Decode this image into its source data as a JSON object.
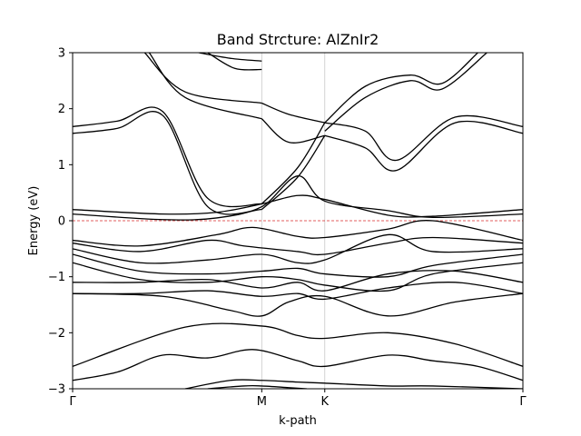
{
  "chart_data": {
    "type": "line",
    "title": "Band Strcture: AlZnIr2",
    "xlabel": "k-path",
    "ylabel": "Energy (eV)",
    "ylim": [
      -3,
      3
    ],
    "xlim": [
      0,
      1
    ],
    "x_ticks": [
      {
        "pos": 0.0,
        "label": "Γ"
      },
      {
        "pos": 0.42,
        "label": "M"
      },
      {
        "pos": 0.56,
        "label": "K"
      },
      {
        "pos": 1.0,
        "label": "Γ"
      }
    ],
    "y_ticks": [
      -3,
      -2,
      -1,
      0,
      1,
      2,
      3
    ],
    "fermi_level": 0,
    "grid": "vertical lines at high-symmetry points",
    "colors": {
      "bands": "#000000",
      "fermi": "#d62728",
      "kline": "#c8c8c8"
    },
    "series": [
      {
        "x": [
          0,
          0.1,
          0.2,
          0.3,
          0.42
        ],
        "values": [
          1.68,
          1.78,
          1.95,
          0.4,
          0.3
        ]
      },
      {
        "x": [
          0,
          0.1,
          0.2,
          0.3,
          0.42
        ],
        "values": [
          1.56,
          1.65,
          1.88,
          0.25,
          0.2
        ]
      },
      {
        "x": [
          0.42,
          0.5,
          0.56
        ],
        "values": [
          0.3,
          0.95,
          1.75
        ]
      },
      {
        "x": [
          0.42,
          0.5,
          0.56
        ],
        "values": [
          0.2,
          0.78,
          1.52
        ]
      },
      {
        "x": [
          0.56,
          0.65,
          0.72,
          0.85,
          1.0
        ],
        "values": [
          1.75,
          1.6,
          1.08,
          1.85,
          1.68
        ]
      },
      {
        "x": [
          0.56,
          0.65,
          0.72,
          0.85,
          1.0
        ],
        "values": [
          1.52,
          1.3,
          0.9,
          1.75,
          1.56
        ]
      },
      {
        "x": [
          0.16,
          0.25,
          0.42
        ],
        "values": [
          3.0,
          2.3,
          2.1
        ]
      },
      {
        "x": [
          0.17,
          0.25,
          0.42
        ],
        "values": [
          3.0,
          2.2,
          1.82
        ]
      },
      {
        "x": [
          0.28,
          0.35,
          0.42
        ],
        "values": [
          3.0,
          2.9,
          2.85
        ]
      },
      {
        "x": [
          0.3,
          0.36,
          0.42
        ],
        "values": [
          3.0,
          2.72,
          2.7
        ]
      },
      {
        "x": [
          0.42,
          0.48,
          0.56
        ],
        "values": [
          2.1,
          1.9,
          1.75
        ]
      },
      {
        "x": [
          0.42,
          0.48,
          0.56
        ],
        "values": [
          1.82,
          1.4,
          1.52
        ]
      },
      {
        "x": [
          0.56,
          0.65,
          0.75,
          0.82,
          0.9
        ],
        "values": [
          1.75,
          2.4,
          2.6,
          2.45,
          3.0
        ]
      },
      {
        "x": [
          0.56,
          0.65,
          0.75,
          0.82,
          0.92
        ],
        "values": [
          1.6,
          2.2,
          2.5,
          2.35,
          3.0
        ]
      },
      {
        "x": [
          0.0,
          0.2,
          0.32,
          0.42,
          0.5,
          0.56,
          0.7,
          0.8,
          1.0
        ],
        "values": [
          0.2,
          0.12,
          0.15,
          0.3,
          0.45,
          0.38,
          0.1,
          0.08,
          0.2
        ]
      },
      {
        "x": [
          0.0,
          0.2,
          0.32,
          0.42,
          0.5,
          0.56,
          0.7,
          0.8,
          1.0
        ],
        "values": [
          0.12,
          0.02,
          0.05,
          0.25,
          0.8,
          0.35,
          0.18,
          0.06,
          0.12
        ]
      },
      {
        "x": [
          0.0,
          0.15,
          0.32,
          0.4,
          0.5,
          0.56,
          0.7,
          0.8,
          1.0
        ],
        "values": [
          -0.35,
          -0.45,
          -0.25,
          -0.12,
          -0.28,
          -0.3,
          -0.15,
          0.0,
          -0.35
        ]
      },
      {
        "x": [
          0.0,
          0.15,
          0.3,
          0.38,
          0.5,
          0.56,
          0.7,
          0.8,
          1.0
        ],
        "values": [
          -0.4,
          -0.55,
          -0.35,
          -0.45,
          -0.55,
          -0.6,
          -0.4,
          -0.3,
          -0.4
        ]
      },
      {
        "x": [
          0.0,
          0.15,
          0.3,
          0.42,
          0.5,
          0.56,
          0.7,
          0.8,
          1.0
        ],
        "values": [
          -0.5,
          -0.75,
          -0.7,
          -0.6,
          -0.75,
          -0.7,
          -0.25,
          -0.55,
          -0.5
        ]
      },
      {
        "x": [
          0.0,
          0.15,
          0.3,
          0.42,
          0.5,
          0.56,
          0.7,
          0.8,
          1.0
        ],
        "values": [
          -0.6,
          -0.9,
          -0.95,
          -0.9,
          -0.85,
          -0.95,
          -1.0,
          -0.8,
          -0.6
        ]
      },
      {
        "x": [
          0.0,
          0.15,
          0.3,
          0.42,
          0.5,
          0.56,
          0.7,
          0.8,
          1.0
        ],
        "values": [
          -0.75,
          -1.05,
          -1.1,
          -1.0,
          -1.05,
          -1.15,
          -1.25,
          -0.95,
          -0.75
        ]
      },
      {
        "x": [
          0.0,
          0.15,
          0.3,
          0.42,
          0.5,
          0.56,
          0.7,
          0.85,
          1.0
        ],
        "values": [
          -1.1,
          -1.1,
          -1.05,
          -1.2,
          -1.1,
          -1.25,
          -0.95,
          -0.9,
          -1.1
        ]
      },
      {
        "x": [
          0.0,
          0.15,
          0.3,
          0.42,
          0.5,
          0.56,
          0.7,
          0.85,
          1.0
        ],
        "values": [
          -1.3,
          -1.3,
          -1.25,
          -1.35,
          -1.3,
          -1.4,
          -1.2,
          -1.1,
          -1.3
        ]
      },
      {
        "x": [
          0.0,
          0.2,
          0.35,
          0.42,
          0.48,
          0.56,
          0.7,
          0.85,
          1.0
        ],
        "values": [
          -1.3,
          -1.35,
          -1.6,
          -1.7,
          -1.45,
          -1.35,
          -1.7,
          -1.45,
          -1.3
        ]
      },
      {
        "x": [
          0.0,
          0.25,
          0.42,
          0.5,
          0.56,
          0.7,
          0.85,
          1.0
        ],
        "values": [
          -2.6,
          -1.9,
          -1.88,
          -2.05,
          -2.1,
          -2.0,
          -2.2,
          -2.6
        ]
      },
      {
        "x": [
          0.0,
          0.1,
          0.2,
          0.3,
          0.4,
          0.5,
          0.56,
          0.7,
          0.8,
          0.9,
          1.0
        ],
        "values": [
          -2.85,
          -2.7,
          -2.4,
          -2.45,
          -2.3,
          -2.5,
          -2.6,
          -2.4,
          -2.5,
          -2.6,
          -2.85
        ]
      },
      {
        "x": [
          0.25,
          0.35,
          0.42,
          0.5,
          0.56,
          0.7,
          0.8,
          1.0
        ],
        "values": [
          -3.0,
          -2.85,
          -2.85,
          -2.88,
          -2.9,
          -2.95,
          -2.95,
          -3.0
        ]
      },
      {
        "x": [
          0.3,
          0.38,
          0.42,
          0.48,
          0.52
        ],
        "values": [
          -3.0,
          -2.95,
          -2.95,
          -2.98,
          -3.0
        ]
      }
    ]
  }
}
